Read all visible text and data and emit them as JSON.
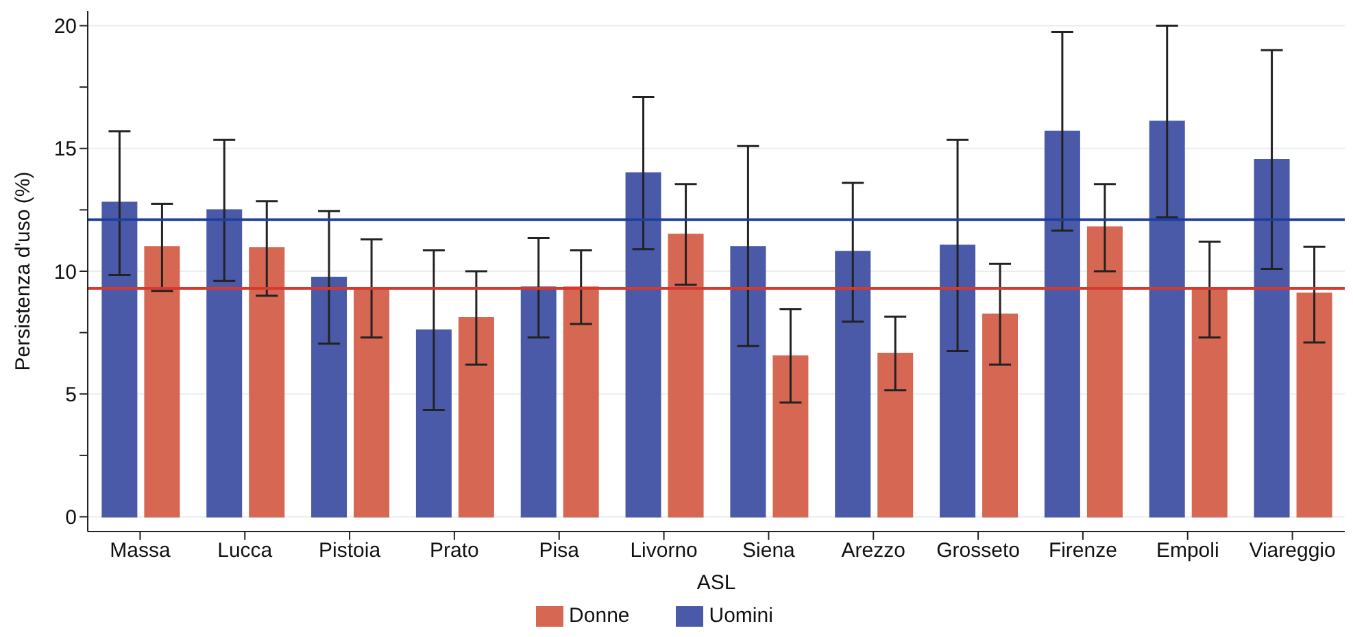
{
  "chart_data": {
    "type": "bar",
    "xlabel": "ASL",
    "ylabel": "Persistenza d'uso (%)",
    "categories": [
      "Massa",
      "Lucca",
      "Pistoia",
      "Prato",
      "Pisa",
      "Livorno",
      "Siena",
      "Arezzo",
      "Grosseto",
      "Firenze",
      "Empoli",
      "Viareggio"
    ],
    "series": [
      {
        "name": "Uomini",
        "color": "#4a5aa8",
        "values": [
          12.8,
          12.5,
          9.75,
          7.6,
          9.35,
          14.0,
          11.0,
          10.8,
          11.05,
          15.7,
          16.1,
          14.55
        ],
        "errors": [
          [
            9.85,
            15.7
          ],
          [
            9.6,
            15.35
          ],
          [
            7.05,
            12.45
          ],
          [
            4.35,
            10.85
          ],
          [
            7.3,
            11.35
          ],
          [
            10.9,
            17.1
          ],
          [
            6.95,
            15.1
          ],
          [
            7.95,
            13.6
          ],
          [
            6.75,
            15.35
          ],
          [
            11.65,
            19.75
          ],
          [
            12.2,
            20.0
          ],
          [
            10.1,
            19.0
          ]
        ]
      },
      {
        "name": "Donne",
        "color": "#d66753",
        "values": [
          11.0,
          10.95,
          9.3,
          8.1,
          9.35,
          11.5,
          6.55,
          6.65,
          8.25,
          11.8,
          9.3,
          9.1
        ],
        "errors": [
          [
            9.2,
            12.75
          ],
          [
            9.0,
            12.85
          ],
          [
            7.3,
            11.3
          ],
          [
            6.2,
            10.0
          ],
          [
            7.85,
            10.85
          ],
          [
            9.45,
            13.55
          ],
          [
            4.65,
            8.45
          ],
          [
            5.15,
            8.15
          ],
          [
            6.2,
            10.3
          ],
          [
            10.0,
            13.55
          ],
          [
            7.3,
            11.2
          ],
          [
            7.1,
            11.0
          ]
        ]
      }
    ],
    "ylim": [
      -0.6,
      20.6
    ],
    "yticks": [
      0,
      {
        "value": 2.5,
        "label": null
      },
      5,
      {
        "value": 7.5,
        "label": null
      },
      10,
      {
        "value": 12.5,
        "label": null
      },
      15,
      {
        "value": 17.5,
        "label": null
      },
      20
    ],
    "ref_lines": [
      {
        "axis": "y",
        "value": 12.1,
        "color": "#1f3f9c"
      },
      {
        "axis": "y",
        "value": 9.3,
        "color": "#d43a2f"
      }
    ],
    "grid": "y",
    "legend": "bottom"
  }
}
